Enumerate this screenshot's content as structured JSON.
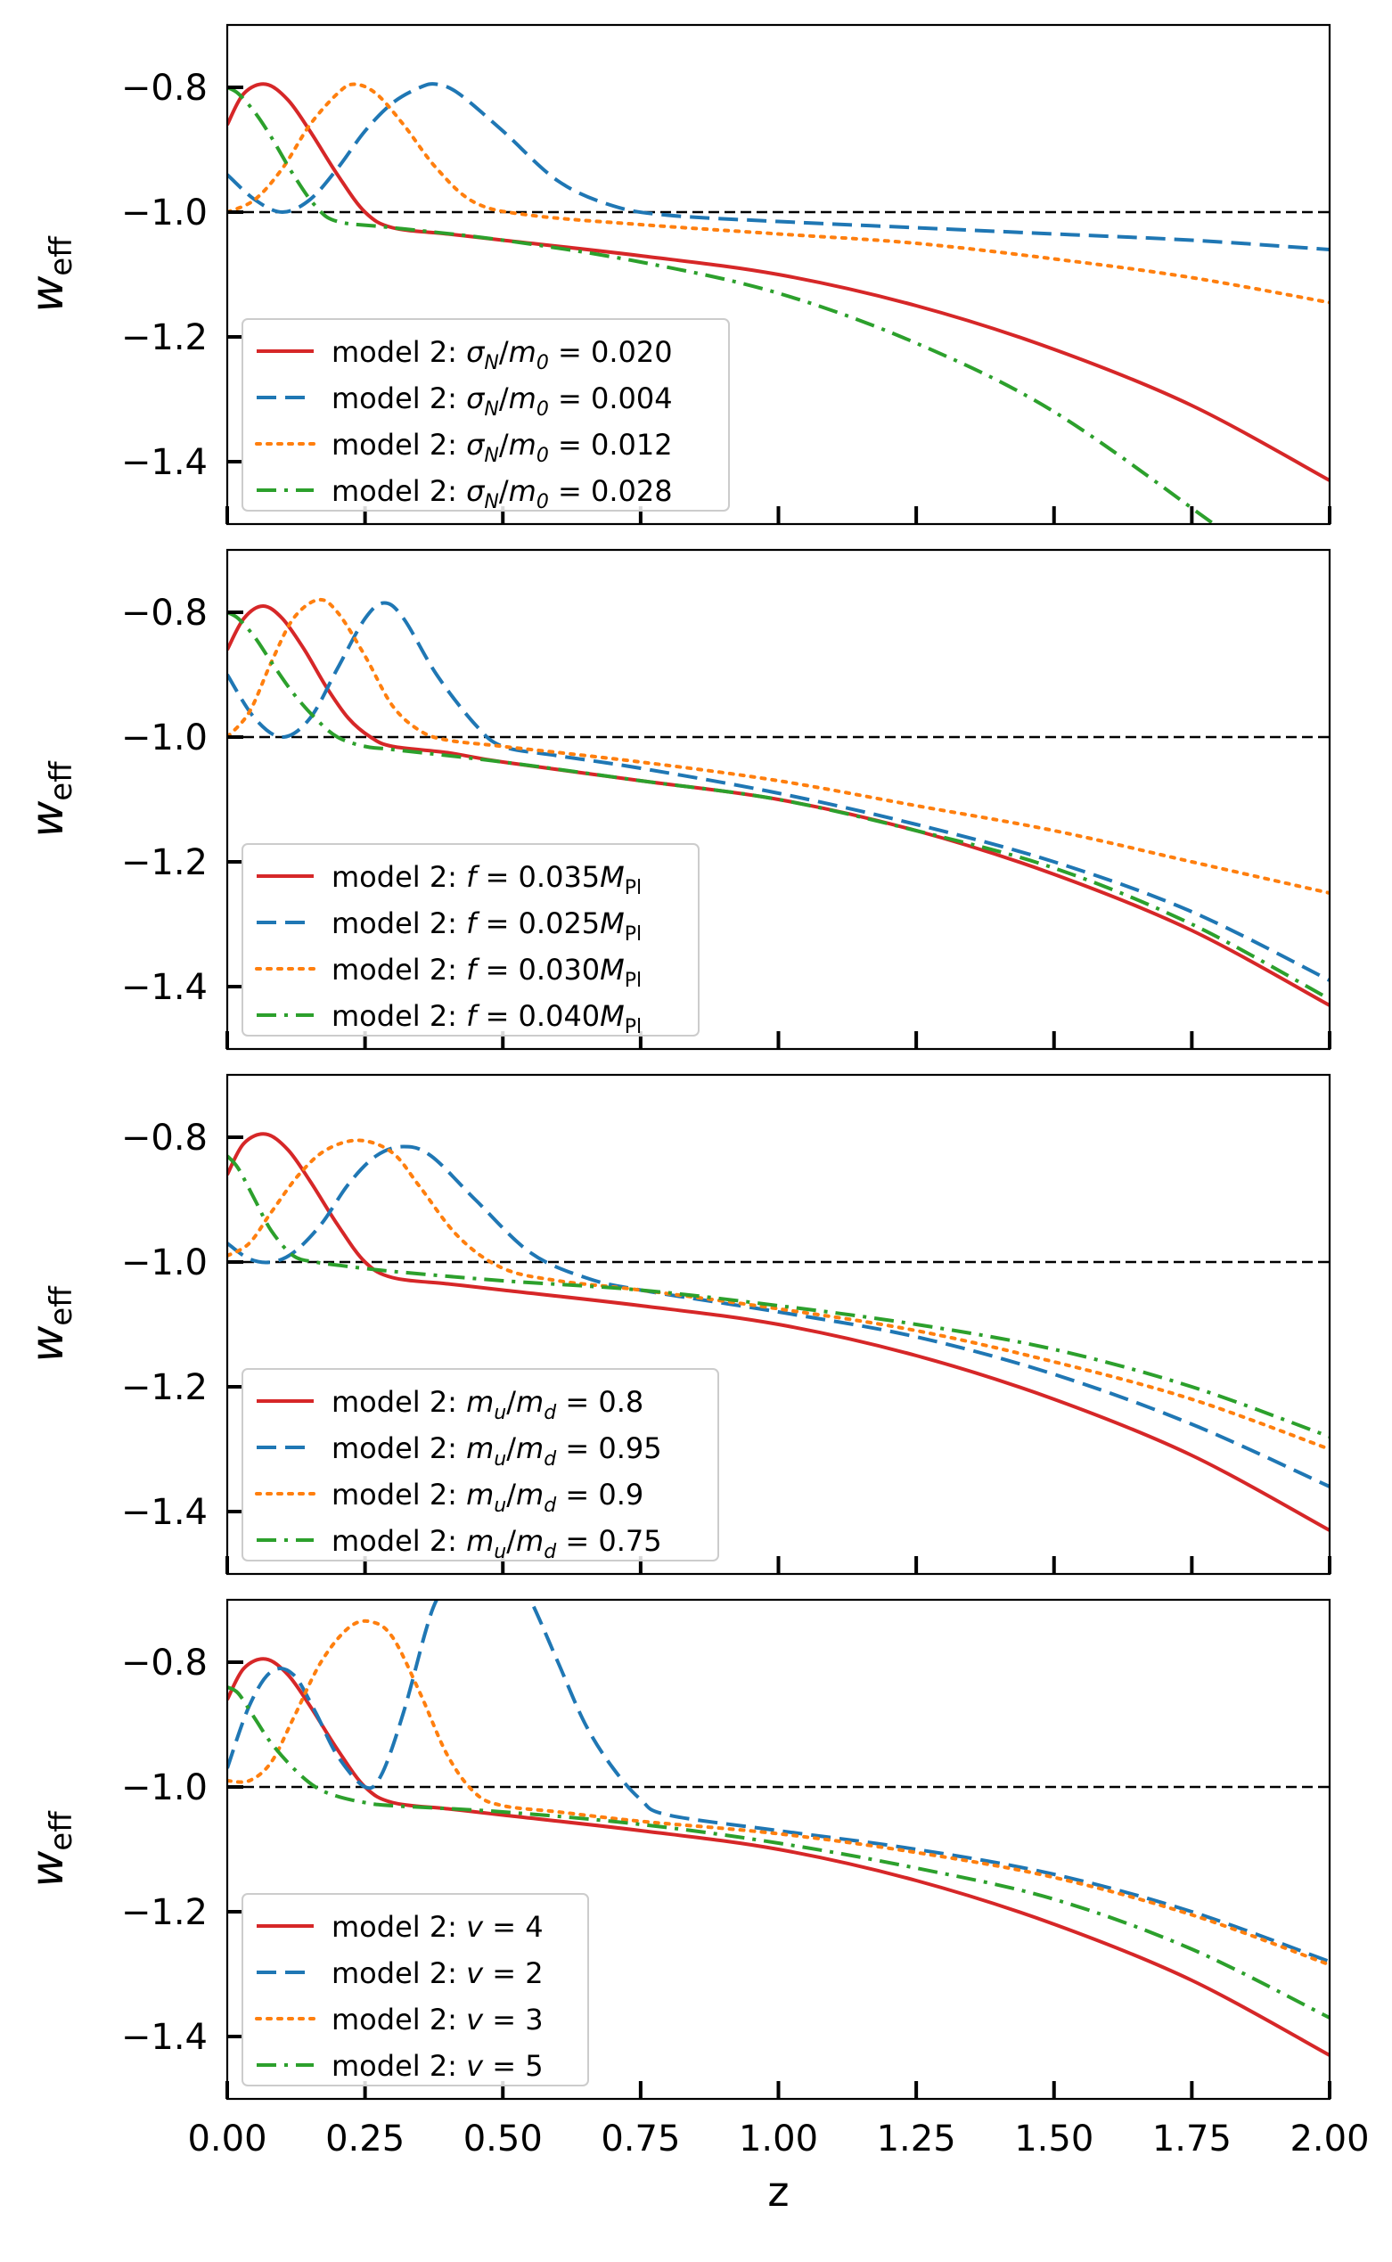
{
  "chart_data": [
    {
      "type": "line",
      "panel": 1,
      "ylabel": "w",
      "ylabel_sub": "eff",
      "xlim": [
        0,
        2
      ],
      "ylim": [
        -1.5,
        -0.7
      ],
      "yticks": [
        -0.8,
        -1.0,
        -1.2,
        -1.4
      ],
      "ytick_labels": [
        "−0.8",
        "−1.0",
        "−1.2",
        "−1.4"
      ],
      "reference_line": -1.0,
      "legend_position": "lower-left",
      "series": [
        {
          "name": "model 2: σ_N/m_0 = 0.020",
          "label_parts": [
            "model 2: ",
            "σ",
            "N",
            "/",
            "m",
            "0",
            " = 0.020"
          ],
          "color": "#d62728",
          "style": "solid",
          "x": [
            0,
            0.03,
            0.07,
            0.11,
            0.15,
            0.2,
            0.25,
            0.3,
            0.4,
            0.5,
            0.75,
            1.0,
            1.25,
            1.5,
            1.75,
            2.0
          ],
          "y": [
            -0.86,
            -0.81,
            -0.795,
            -0.82,
            -0.87,
            -0.94,
            -1.0,
            -1.025,
            -1.035,
            -1.045,
            -1.07,
            -1.1,
            -1.15,
            -1.22,
            -1.31,
            -1.43
          ]
        },
        {
          "name": "model 2: σ_N/m_0 = 0.004",
          "label_parts": [
            "model 2: ",
            "σ",
            "N",
            "/",
            "m",
            "0",
            " = 0.004"
          ],
          "color": "#1f77b4",
          "style": "dashed",
          "x": [
            0,
            0.05,
            0.1,
            0.15,
            0.2,
            0.25,
            0.3,
            0.35,
            0.38,
            0.42,
            0.5,
            0.6,
            0.7,
            0.8,
            1.0,
            1.25,
            1.5,
            1.75,
            2.0
          ],
          "y": [
            -0.94,
            -0.98,
            -1.0,
            -0.98,
            -0.93,
            -0.87,
            -0.825,
            -0.8,
            -0.795,
            -0.81,
            -0.87,
            -0.95,
            -0.99,
            -1.005,
            -1.015,
            -1.025,
            -1.035,
            -1.045,
            -1.06
          ]
        },
        {
          "name": "model 2: σ_N/m_0 = 0.012",
          "label_parts": [
            "model 2: ",
            "σ",
            "N",
            "/",
            "m",
            "0",
            " = 0.012"
          ],
          "color": "#ff7f0e",
          "style": "dotted",
          "x": [
            0,
            0.05,
            0.1,
            0.15,
            0.2,
            0.23,
            0.27,
            0.32,
            0.38,
            0.45,
            0.55,
            0.75,
            1.0,
            1.25,
            1.5,
            1.75,
            2.0
          ],
          "y": [
            -1.0,
            -0.98,
            -0.93,
            -0.86,
            -0.81,
            -0.795,
            -0.81,
            -0.86,
            -0.93,
            -0.985,
            -1.005,
            -1.02,
            -1.035,
            -1.05,
            -1.075,
            -1.105,
            -1.145
          ]
        },
        {
          "name": "model 2: σ_N/m_0 = 0.028",
          "label_parts": [
            "model 2: ",
            "σ",
            "N",
            "/",
            "m",
            "0",
            " = 0.028"
          ],
          "color": "#2ca02c",
          "style": "dashdot",
          "x": [
            0,
            0.02,
            0.05,
            0.08,
            0.12,
            0.16,
            0.2,
            0.3,
            0.5,
            0.75,
            1.0,
            1.25,
            1.5,
            1.79
          ],
          "y": [
            -0.8,
            -0.81,
            -0.84,
            -0.88,
            -0.94,
            -0.99,
            -1.015,
            -1.025,
            -1.045,
            -1.08,
            -1.13,
            -1.21,
            -1.32,
            -1.5
          ]
        }
      ]
    },
    {
      "type": "line",
      "panel": 2,
      "ylabel": "w",
      "ylabel_sub": "eff",
      "xlim": [
        0,
        2
      ],
      "ylim": [
        -1.5,
        -0.7
      ],
      "yticks": [
        -0.8,
        -1.0,
        -1.2,
        -1.4
      ],
      "ytick_labels": [
        "−0.8",
        "−1.0",
        "−1.2",
        "−1.4"
      ],
      "reference_line": -1.0,
      "legend_position": "lower-left",
      "series": [
        {
          "name": "model 2: f = 0.035M_Pl",
          "label_parts": [
            "model 2: ",
            "f",
            "",
            " = 0.035",
            "M",
            "Pl",
            ""
          ],
          "color": "#d62728",
          "style": "solid",
          "x": [
            0,
            0.03,
            0.065,
            0.1,
            0.14,
            0.18,
            0.22,
            0.26,
            0.3,
            0.4,
            0.5,
            0.75,
            1.0,
            1.25,
            1.5,
            1.75,
            2.0
          ],
          "y": [
            -0.86,
            -0.81,
            -0.79,
            -0.81,
            -0.86,
            -0.92,
            -0.97,
            -1.0,
            -1.015,
            -1.025,
            -1.04,
            -1.07,
            -1.1,
            -1.15,
            -1.22,
            -1.31,
            -1.43
          ]
        },
        {
          "name": "model 2: f = 0.025M_Pl",
          "label_parts": [
            "model 2: ",
            "f",
            "",
            " = 0.025",
            "M",
            "Pl",
            ""
          ],
          "color": "#1f77b4",
          "style": "dashed",
          "x": [
            0,
            0.05,
            0.1,
            0.15,
            0.2,
            0.25,
            0.285,
            0.32,
            0.38,
            0.45,
            0.5,
            0.6,
            0.75,
            1.0,
            1.25,
            1.5,
            1.75,
            2.0
          ],
          "y": [
            -0.9,
            -0.97,
            -1.0,
            -0.97,
            -0.89,
            -0.81,
            -0.785,
            -0.81,
            -0.9,
            -0.98,
            -1.015,
            -1.03,
            -1.05,
            -1.09,
            -1.14,
            -1.2,
            -1.28,
            -1.39
          ]
        },
        {
          "name": "model 2: f = 0.030M_Pl",
          "label_parts": [
            "model 2: ",
            "f",
            "",
            " = 0.030",
            "M",
            "Pl",
            ""
          ],
          "color": "#ff7f0e",
          "style": "dotted",
          "x": [
            0,
            0.04,
            0.08,
            0.12,
            0.165,
            0.2,
            0.25,
            0.3,
            0.35,
            0.4,
            0.5,
            0.75,
            1.0,
            1.25,
            1.5,
            1.75,
            2.0
          ],
          "y": [
            -1.0,
            -0.96,
            -0.88,
            -0.81,
            -0.78,
            -0.8,
            -0.87,
            -0.95,
            -0.99,
            -1.005,
            -1.015,
            -1.04,
            -1.07,
            -1.11,
            -1.15,
            -1.2,
            -1.25
          ]
        },
        {
          "name": "model 2: f = 0.040M_Pl",
          "label_parts": [
            "model 2: ",
            "f",
            "",
            " = 0.040",
            "M",
            "Pl",
            ""
          ],
          "color": "#2ca02c",
          "style": "dashdot",
          "x": [
            0,
            0.02,
            0.05,
            0.08,
            0.12,
            0.16,
            0.2,
            0.25,
            0.3,
            0.5,
            0.75,
            1.0,
            1.25,
            1.5,
            1.75,
            2.0
          ],
          "y": [
            -0.8,
            -0.81,
            -0.84,
            -0.88,
            -0.93,
            -0.97,
            -1.0,
            -1.015,
            -1.02,
            -1.04,
            -1.07,
            -1.1,
            -1.15,
            -1.21,
            -1.3,
            -1.42
          ]
        }
      ]
    },
    {
      "type": "line",
      "panel": 3,
      "ylabel": "w",
      "ylabel_sub": "eff",
      "xlim": [
        0,
        2
      ],
      "ylim": [
        -1.5,
        -0.7
      ],
      "yticks": [
        -0.8,
        -1.0,
        -1.2,
        -1.4
      ],
      "ytick_labels": [
        "−0.8",
        "−1.0",
        "−1.2",
        "−1.4"
      ],
      "reference_line": -1.0,
      "legend_position": "lower-left",
      "series": [
        {
          "name": "model 2: m_u/m_d = 0.8",
          "label_parts": [
            "model 2: ",
            "m",
            "u",
            "/",
            "m",
            "d",
            " = 0.8"
          ],
          "color": "#d62728",
          "style": "solid",
          "x": [
            0,
            0.03,
            0.07,
            0.11,
            0.15,
            0.2,
            0.25,
            0.3,
            0.4,
            0.5,
            0.75,
            1.0,
            1.25,
            1.5,
            1.75,
            2.0
          ],
          "y": [
            -0.86,
            -0.81,
            -0.795,
            -0.82,
            -0.87,
            -0.94,
            -1.0,
            -1.025,
            -1.035,
            -1.045,
            -1.07,
            -1.1,
            -1.15,
            -1.22,
            -1.31,
            -1.43
          ]
        },
        {
          "name": "model 2: m_u/m_d = 0.95",
          "label_parts": [
            "model 2: ",
            "m",
            "u",
            "/",
            "m",
            "d",
            " = 0.95"
          ],
          "color": "#1f77b4",
          "style": "dashed",
          "x": [
            0,
            0.04,
            0.08,
            0.12,
            0.17,
            0.22,
            0.27,
            0.32,
            0.37,
            0.45,
            0.55,
            0.65,
            0.75,
            1.0,
            1.25,
            1.5,
            1.75,
            2.0
          ],
          "y": [
            -0.97,
            -0.995,
            -1.0,
            -0.985,
            -0.94,
            -0.875,
            -0.83,
            -0.815,
            -0.83,
            -0.9,
            -0.985,
            -1.025,
            -1.045,
            -1.08,
            -1.12,
            -1.18,
            -1.26,
            -1.36
          ]
        },
        {
          "name": "model 2: m_u/m_d = 0.9",
          "label_parts": [
            "model 2: ",
            "m",
            "u",
            "/",
            "m",
            "d",
            " = 0.9"
          ],
          "color": "#ff7f0e",
          "style": "dotted",
          "x": [
            0,
            0.04,
            0.08,
            0.13,
            0.18,
            0.24,
            0.3,
            0.35,
            0.42,
            0.5,
            0.6,
            0.75,
            1.0,
            1.25,
            1.5,
            1.75,
            2.0
          ],
          "y": [
            -0.99,
            -0.97,
            -0.92,
            -0.86,
            -0.82,
            -0.805,
            -0.825,
            -0.88,
            -0.96,
            -1.01,
            -1.03,
            -1.045,
            -1.075,
            -1.11,
            -1.16,
            -1.22,
            -1.3
          ]
        },
        {
          "name": "model 2: m_u/m_d = 0.75",
          "label_parts": [
            "model 2: ",
            "m",
            "u",
            "/",
            "m",
            "d",
            " = 0.75"
          ],
          "color": "#2ca02c",
          "style": "dashdot",
          "x": [
            0,
            0.02,
            0.05,
            0.08,
            0.12,
            0.16,
            0.2,
            0.3,
            0.5,
            0.75,
            1.0,
            1.25,
            1.5,
            1.75,
            2.0
          ],
          "y": [
            -0.83,
            -0.85,
            -0.9,
            -0.95,
            -0.99,
            -1.0,
            -1.005,
            -1.015,
            -1.03,
            -1.045,
            -1.07,
            -1.1,
            -1.14,
            -1.2,
            -1.28
          ]
        }
      ]
    },
    {
      "type": "line",
      "panel": 4,
      "ylabel": "w",
      "ylabel_sub": "eff",
      "xlabel": "z",
      "xlim": [
        0,
        2
      ],
      "ylim": [
        -1.5,
        -0.7
      ],
      "xticks": [
        0,
        0.25,
        0.5,
        0.75,
        1.0,
        1.25,
        1.5,
        1.75,
        2.0
      ],
      "xtick_labels": [
        "0.00",
        "0.25",
        "0.50",
        "0.75",
        "1.00",
        "1.25",
        "1.50",
        "1.75",
        "2.00"
      ],
      "yticks": [
        -0.8,
        -1.0,
        -1.2,
        -1.4
      ],
      "ytick_labels": [
        "−0.8",
        "−1.0",
        "−1.2",
        "−1.4"
      ],
      "reference_line": -1.0,
      "legend_position": "lower-left",
      "series": [
        {
          "name": "model 2: v = 4",
          "label_parts": [
            "model 2: ",
            "v",
            "",
            "",
            "",
            "",
            " = 4"
          ],
          "color": "#d62728",
          "style": "solid",
          "x": [
            0,
            0.03,
            0.07,
            0.11,
            0.15,
            0.2,
            0.25,
            0.3,
            0.4,
            0.5,
            0.75,
            1.0,
            1.25,
            1.5,
            1.75,
            2.0
          ],
          "y": [
            -0.86,
            -0.81,
            -0.795,
            -0.82,
            -0.87,
            -0.94,
            -1.0,
            -1.025,
            -1.035,
            -1.045,
            -1.07,
            -1.1,
            -1.15,
            -1.22,
            -1.31,
            -1.43
          ]
        },
        {
          "name": "model 2: v = 2",
          "label_parts": [
            "model 2: ",
            "v",
            "",
            "",
            "",
            "",
            " = 2"
          ],
          "color": "#1f77b4",
          "style": "dashed",
          "x": [
            0,
            0.04,
            0.08,
            0.12,
            0.16,
            0.2,
            0.25,
            0.28,
            0.32,
            0.36,
            0.38,
            0.4,
            0.45,
            0.5,
            0.55,
            0.6,
            0.65,
            0.7,
            0.75,
            0.8,
            1.0,
            1.25,
            1.5,
            1.75,
            2.0
          ],
          "y": [
            -0.97,
            -0.87,
            -0.815,
            -0.82,
            -0.88,
            -0.95,
            -1.0,
            -0.98,
            -0.88,
            -0.75,
            -0.7,
            -0.68,
            -0.63,
            -0.62,
            -0.7,
            -0.8,
            -0.9,
            -0.97,
            -1.02,
            -1.045,
            -1.07,
            -1.1,
            -1.14,
            -1.2,
            -1.28
          ]
        },
        {
          "name": "model 2: v = 3",
          "label_parts": [
            "model 2: ",
            "v",
            "",
            "",
            "",
            "",
            " = 3"
          ],
          "color": "#ff7f0e",
          "style": "dotted",
          "x": [
            0,
            0.04,
            0.08,
            0.12,
            0.17,
            0.22,
            0.26,
            0.3,
            0.35,
            0.4,
            0.45,
            0.5,
            0.6,
            0.75,
            1.0,
            1.25,
            1.5,
            1.75,
            2.0
          ],
          "y": [
            -0.99,
            -0.99,
            -0.96,
            -0.89,
            -0.8,
            -0.745,
            -0.735,
            -0.76,
            -0.85,
            -0.95,
            -1.01,
            -1.03,
            -1.04,
            -1.055,
            -1.075,
            -1.105,
            -1.145,
            -1.205,
            -1.285
          ]
        },
        {
          "name": "model 2: v = 5",
          "label_parts": [
            "model 2: ",
            "v",
            "",
            "",
            "",
            "",
            " = 5"
          ],
          "color": "#2ca02c",
          "style": "dashdot",
          "x": [
            0,
            0.02,
            0.05,
            0.08,
            0.12,
            0.16,
            0.2,
            0.25,
            0.3,
            0.5,
            0.75,
            1.0,
            1.25,
            1.5,
            1.75,
            2.0
          ],
          "y": [
            -0.84,
            -0.85,
            -0.89,
            -0.93,
            -0.97,
            -1.0,
            -1.015,
            -1.025,
            -1.03,
            -1.04,
            -1.06,
            -1.09,
            -1.13,
            -1.18,
            -1.26,
            -1.37
          ]
        }
      ]
    }
  ]
}
